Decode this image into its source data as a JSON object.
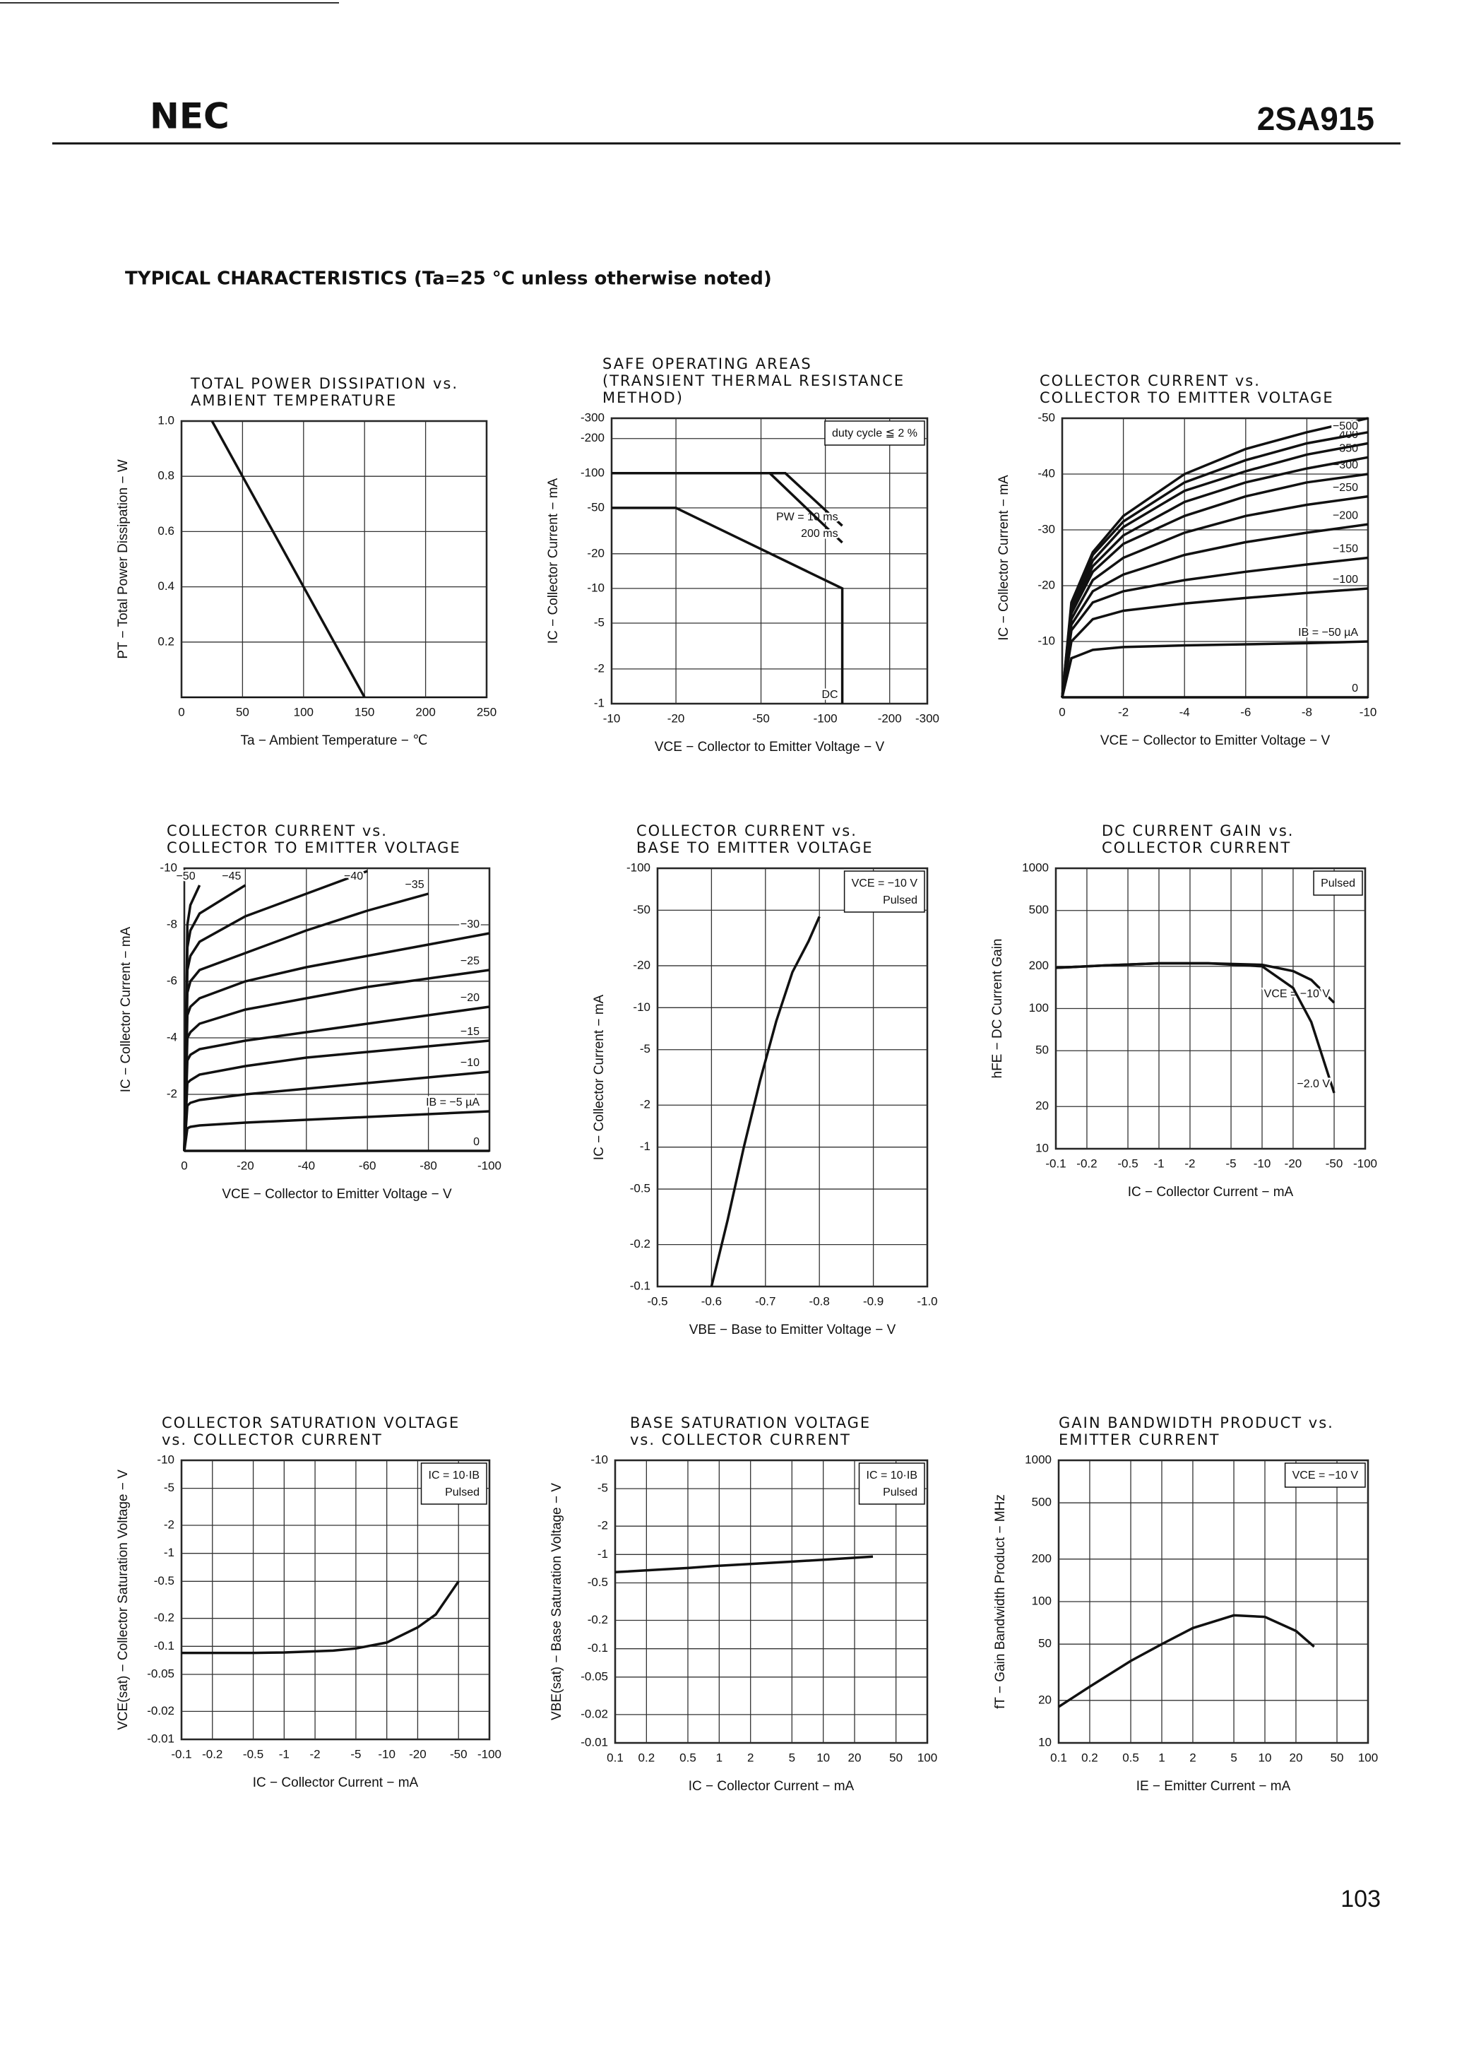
{
  "header": {
    "brand": "NEC",
    "part": "2SA915"
  },
  "section_title": "TYPICAL CHARACTERISTICS (Ta=25 °C unless otherwise noted)",
  "page_number": "103",
  "chart_data": [
    {
      "type": "line",
      "title": [
        "TOTAL POWER DISSIPATION vs.",
        "AMBIENT TEMPERATURE"
      ],
      "xlabel": "Ta − Ambient Temperature − ℃",
      "ylabel": "PT − Total Power Dissipation − W",
      "xlim": [
        0,
        250
      ],
      "ylim": [
        0,
        1
      ],
      "xticks": [
        0,
        50,
        100,
        150,
        200,
        250
      ],
      "yticks": [
        0.2,
        0.4,
        0.6,
        0.8,
        {
          "value": 1,
          "label": "1.0"
        }
      ],
      "xlog": false,
      "ylog": false,
      "grid": true,
      "color": "#111111",
      "series": [
        {
          "x": [
            25,
            150
          ],
          "values": [
            1,
            0
          ]
        }
      ]
    },
    {
      "type": "line",
      "title": [
        "SAFE OPERATING AREAS",
        "(TRANSIENT THERMAL RESISTANCE",
        "METHOD)"
      ],
      "xlabel": "VCE − Collector to Emitter Voltage − V",
      "ylabel": "IC − Collector Current − mA",
      "xlim": [
        -10,
        -300
      ],
      "ylim": [
        -1,
        -300
      ],
      "xticks": [
        -10,
        -20,
        -50,
        -100,
        -200,
        -300
      ],
      "yticks": [
        -1,
        -2,
        -5,
        -10,
        -20,
        -50,
        -100,
        -200,
        -300
      ],
      "xlog": true,
      "ylog": true,
      "grid": true,
      "color": "#111111",
      "notes": [
        "duty cycle ≦ 2 %"
      ],
      "series": [
        {
          "name": "PW = 10 ms",
          "x": [
            -10,
            -65,
            -120
          ],
          "values": [
            -100,
            -100,
            -35
          ]
        },
        {
          "name": "200 ms",
          "x": [
            -10,
            -55,
            -120
          ],
          "values": [
            -100,
            -100,
            -25
          ]
        },
        {
          "name": "DC",
          "x": [
            -10,
            -20,
            -120,
            -120
          ],
          "values": [
            -50,
            -50,
            -10,
            -1
          ]
        }
      ]
    },
    {
      "type": "line",
      "title": [
        "COLLECTOR CURRENT vs.",
        "COLLECTOR TO EMITTER VOLTAGE"
      ],
      "xlabel": "VCE − Collector to Emitter Voltage − V",
      "ylabel": "IC − Collector Current − mA",
      "xlim": [
        0,
        -10
      ],
      "ylim": [
        0,
        -50
      ],
      "xticks": [
        0,
        -2,
        -4,
        -6,
        -8,
        -10
      ],
      "yticks": [
        -10,
        -20,
        -30,
        -40,
        -50
      ],
      "xlog": false,
      "ylog": false,
      "grid": true,
      "color": "#111111",
      "series": [
        {
          "name": "0",
          "x": [
            0,
            -10
          ],
          "values": [
            0,
            0
          ]
        },
        {
          "name": "IB = −50 µA",
          "x": [
            0,
            -0.3,
            -1,
            -2,
            -4,
            -6,
            -8,
            -10
          ],
          "values": [
            0,
            -7,
            -8.5,
            -9,
            -9.3,
            -9.5,
            -9.7,
            -10
          ]
        },
        {
          "name": "−100",
          "x": [
            0,
            -0.3,
            -1,
            -2,
            -4,
            -6,
            -8,
            -10
          ],
          "values": [
            0,
            -10,
            -14,
            -15.5,
            -16.8,
            -17.8,
            -18.7,
            -19.5
          ]
        },
        {
          "name": "−150",
          "x": [
            0,
            -0.3,
            -1,
            -2,
            -4,
            -6,
            -8,
            -10
          ],
          "values": [
            0,
            -12,
            -17,
            -19,
            -21,
            -22.5,
            -23.8,
            -25
          ]
        },
        {
          "name": "−200",
          "x": [
            0,
            -0.3,
            -1,
            -2,
            -4,
            -6,
            -8,
            -10
          ],
          "values": [
            0,
            -13,
            -19,
            -22,
            -25.5,
            -27.8,
            -29.5,
            -31
          ]
        },
        {
          "name": "−250",
          "x": [
            0,
            -0.3,
            -1,
            -2,
            -4,
            -6,
            -8,
            -10
          ],
          "values": [
            0,
            -14,
            -21,
            -25,
            -29.5,
            -32.5,
            -34.5,
            -36
          ]
        },
        {
          "name": "−300",
          "x": [
            0,
            -0.3,
            -1,
            -2,
            -4,
            -6,
            -8,
            -10
          ],
          "values": [
            0,
            -15,
            -22.5,
            -27.5,
            -32.5,
            -36,
            -38.5,
            -40
          ]
        },
        {
          "name": "350",
          "x": [
            0,
            -0.3,
            -1,
            -2,
            -4,
            -6,
            -8,
            -10
          ],
          "values": [
            0,
            -15.5,
            -23.5,
            -29,
            -35,
            -38.5,
            -41,
            -43
          ]
        },
        {
          "name": "400",
          "x": [
            0,
            -0.3,
            -1,
            -2,
            -4,
            -6,
            -8,
            -10
          ],
          "values": [
            0,
            -16,
            -24.5,
            -30.5,
            -37,
            -40.5,
            -43.5,
            -45.5
          ]
        },
        {
          "name": "450",
          "x": [
            0,
            -0.3,
            -1,
            -2,
            -4,
            -6,
            -8,
            -10
          ],
          "values": [
            0,
            -16.5,
            -25.5,
            -31.5,
            -38.5,
            -42.5,
            -45.5,
            -47.5
          ]
        },
        {
          "name": "−500",
          "x": [
            0,
            -0.3,
            -1,
            -2,
            -4,
            -6,
            -8,
            -10
          ],
          "values": [
            0,
            -17,
            -26,
            -32.5,
            -40,
            -44.5,
            -47.5,
            -50
          ]
        }
      ]
    },
    {
      "type": "line",
      "title": [
        "COLLECTOR CURRENT vs.",
        "COLLECTOR TO EMITTER VOLTAGE"
      ],
      "xlabel": "VCE − Collector to Emitter Voltage − V",
      "ylabel": "IC − Collector Current − mA",
      "xlim": [
        0,
        -100
      ],
      "ylim": [
        0,
        -10
      ],
      "xticks": [
        0,
        -20,
        -40,
        -60,
        -80,
        -100
      ],
      "yticks": [
        -2,
        -4,
        -6,
        -8,
        -10
      ],
      "xlog": false,
      "ylog": false,
      "grid": true,
      "color": "#111111",
      "series": [
        {
          "name": "0",
          "x": [
            0,
            -100
          ],
          "values": [
            0,
            0
          ]
        },
        {
          "name": "IB = −5 µA",
          "x": [
            0,
            -1,
            -2,
            -5,
            -20,
            -40,
            -60,
            -80,
            -100
          ],
          "values": [
            0,
            -0.8,
            -0.85,
            -0.9,
            -1,
            -1.1,
            -1.2,
            -1.3,
            -1.4
          ]
        },
        {
          "name": "−10",
          "x": [
            0,
            -1,
            -2,
            -5,
            -20,
            -40,
            -60,
            -80,
            -100
          ],
          "values": [
            0,
            -1.6,
            -1.7,
            -1.8,
            -2,
            -2.2,
            -2.4,
            -2.6,
            -2.8
          ]
        },
        {
          "name": "−15",
          "x": [
            0,
            -1,
            -2,
            -5,
            -20,
            -40,
            -60,
            -80,
            -100
          ],
          "values": [
            0,
            -2.4,
            -2.5,
            -2.7,
            -3,
            -3.3,
            -3.5,
            -3.7,
            -3.9
          ]
        },
        {
          "name": "−20",
          "x": [
            0,
            -1,
            -2,
            -5,
            -20,
            -40,
            -60,
            -80,
            -100
          ],
          "values": [
            0,
            -3.2,
            -3.4,
            -3.6,
            -3.9,
            -4.2,
            -4.5,
            -4.8,
            -5.1
          ]
        },
        {
          "name": "−25",
          "x": [
            0,
            -1,
            -2,
            -5,
            -20,
            -40,
            -60,
            -80,
            -100
          ],
          "values": [
            0,
            -4,
            -4.2,
            -4.5,
            -5,
            -5.4,
            -5.8,
            -6.1,
            -6.4
          ]
        },
        {
          "name": "−30",
          "x": [
            0,
            -1,
            -2,
            -5,
            -20,
            -40,
            -60,
            -80,
            -100
          ],
          "values": [
            0,
            -4.8,
            -5.1,
            -5.4,
            -6,
            -6.5,
            -6.9,
            -7.3,
            -7.7
          ]
        },
        {
          "name": "−35",
          "x": [
            0,
            -1,
            -2,
            -5,
            -20,
            -40,
            -60,
            -80,
            -100
          ],
          "values": [
            0,
            -5.6,
            -6,
            -6.4,
            -7,
            -7.8,
            -8.5,
            -9.1,
            null
          ]
        },
        {
          "name": "−40",
          "x": [
            0,
            -1,
            -2,
            -5,
            -20,
            -40,
            -60,
            -80,
            -100
          ],
          "values": [
            0,
            -6.4,
            -6.9,
            -7.4,
            -8.3,
            -9.1,
            -9.9,
            null,
            null
          ]
        },
        {
          "name": "−45",
          "x": [
            0,
            -1,
            -2,
            -5,
            -20,
            -40,
            -60,
            -80,
            -100
          ],
          "values": [
            0,
            -7.2,
            -7.8,
            -8.4,
            -9.4,
            null,
            null,
            null,
            null
          ]
        },
        {
          "name": "−50",
          "x": [
            0,
            -1,
            -2,
            -5,
            -20,
            -40,
            -60,
            -80,
            -100
          ],
          "values": [
            0,
            -8,
            -8.7,
            -9.4,
            null,
            null,
            null,
            null,
            null
          ]
        }
      ]
    },
    {
      "type": "line",
      "title": [
        "COLLECTOR CURRENT vs.",
        "BASE TO EMITTER VOLTAGE"
      ],
      "xlabel": "VBE − Base to Emitter Voltage − V",
      "ylabel": "IC − Collector Current − mA",
      "xlim": [
        -0.5,
        -1
      ],
      "ylim": [
        -0.1,
        -100
      ],
      "xticks": [
        -0.5,
        -0.6,
        -0.7,
        -0.8,
        -0.9,
        {
          "value": -1,
          "label": "-1.0"
        }
      ],
      "yticks": [
        -0.1,
        -0.2,
        -0.5,
        -1,
        -2,
        -5,
        -10,
        -20,
        -50,
        -100
      ],
      "xlog": false,
      "ylog": true,
      "grid": true,
      "color": "#111111",
      "notes": [
        "VCE = −10 V",
        "Pulsed"
      ],
      "series": [
        {
          "x": [
            -0.6,
            -0.63,
            -0.66,
            -0.69,
            -0.72,
            -0.75,
            -0.78,
            -0.8
          ],
          "values": [
            -0.1,
            -0.3,
            -1,
            -3,
            -8,
            -18,
            -30,
            -45
          ]
        }
      ]
    },
    {
      "type": "line",
      "title": [
        "DC CURRENT GAIN vs.",
        "COLLECTOR CURRENT"
      ],
      "xlabel": "IC − Collector Current − mA",
      "ylabel": "hFE − DC Current Gain",
      "xlim": [
        -0.1,
        -100
      ],
      "ylim": [
        10,
        1000
      ],
      "xticks": [
        -0.1,
        -0.2,
        -0.5,
        -1,
        -2,
        -5,
        -10,
        -20,
        -50,
        -100
      ],
      "yticks": [
        10,
        20,
        50,
        100,
        200,
        500,
        1000
      ],
      "xlog": true,
      "ylog": true,
      "grid": true,
      "color": "#111111",
      "notes": [
        "Pulsed"
      ],
      "series": [
        {
          "name": "VCE = −10 V",
          "x": [
            -0.1,
            -0.3,
            -1,
            -3,
            -10,
            -20,
            -30,
            -50
          ],
          "values": [
            195,
            203,
            210,
            210,
            205,
            185,
            160,
            110
          ]
        },
        {
          "name": "−2.0 V",
          "x": [
            -0.1,
            -0.3,
            -1,
            -3,
            -10,
            -20,
            -30,
            -50
          ],
          "values": [
            195,
            203,
            210,
            210,
            200,
            140,
            80,
            25
          ]
        }
      ]
    },
    {
      "type": "line",
      "title": [
        "COLLECTOR SATURATION VOLTAGE",
        "vs. COLLECTOR CURRENT"
      ],
      "xlabel": "IC − Collector Current − mA",
      "ylabel": "VCE(sat) − Collector Saturation Voltage − V",
      "xlim": [
        -0.1,
        -100
      ],
      "ylim": [
        -0.01,
        -10
      ],
      "xticks": [
        -0.1,
        -0.2,
        -0.5,
        -1,
        -2,
        -5,
        -10,
        -20,
        -50,
        -100
      ],
      "yticks": [
        -0.01,
        -0.02,
        -0.05,
        -0.1,
        -0.2,
        -0.5,
        -1,
        -2,
        -5,
        -10
      ],
      "xlog": true,
      "ylog": true,
      "grid": true,
      "color": "#111111",
      "notes": [
        "IC = 10·IB",
        "Pulsed"
      ],
      "series": [
        {
          "x": [
            -0.1,
            -0.5,
            -1,
            -3,
            -5,
            -10,
            -20,
            -30,
            -50
          ],
          "values": [
            -0.085,
            -0.085,
            -0.086,
            -0.09,
            -0.095,
            -0.11,
            -0.16,
            -0.22,
            -0.5
          ]
        }
      ]
    },
    {
      "type": "line",
      "title": [
        "BASE SATURATION VOLTAGE",
        "vs. COLLECTOR CURRENT"
      ],
      "xlabel": "IC − Collector Current − mA",
      "ylabel": "VBE(sat) − Base Saturation Voltage − V",
      "xlim": [
        0.1,
        100
      ],
      "ylim": [
        -0.01,
        -10
      ],
      "xticks": [
        0.1,
        0.2,
        0.5,
        1,
        2,
        5,
        10,
        20,
        50,
        100
      ],
      "yticks": [
        -0.01,
        -0.02,
        -0.05,
        -0.1,
        -0.2,
        -0.5,
        -1,
        -2,
        -5,
        -10
      ],
      "xlog": true,
      "ylog": true,
      "grid": true,
      "color": "#111111",
      "notes": [
        "IC = 10·IB",
        "Pulsed"
      ],
      "series": [
        {
          "x": [
            0.1,
            0.5,
            1,
            5,
            10,
            30
          ],
          "values": [
            -0.65,
            -0.72,
            -0.76,
            -0.84,
            -0.88,
            -0.95
          ]
        }
      ]
    },
    {
      "type": "line",
      "title": [
        "GAIN BANDWIDTH PRODUCT vs.",
        "EMITTER CURRENT"
      ],
      "xlabel": "IE − Emitter Current − mA",
      "ylabel": "fT − Gain Bandwidth Product − MHz",
      "xlim": [
        0.1,
        100
      ],
      "ylim": [
        10,
        1000
      ],
      "xticks": [
        0.1,
        0.2,
        0.5,
        1,
        2,
        5,
        10,
        20,
        50,
        100
      ],
      "yticks": [
        10,
        20,
        50,
        100,
        200,
        500,
        1000
      ],
      "xlog": true,
      "ylog": true,
      "grid": true,
      "color": "#111111",
      "notes": [
        "VCE = −10 V"
      ],
      "series": [
        {
          "x": [
            0.1,
            0.2,
            0.5,
            1,
            2,
            5,
            10,
            20,
            30
          ],
          "values": [
            18,
            25,
            38,
            50,
            65,
            80,
            78,
            62,
            48
          ]
        }
      ]
    }
  ]
}
